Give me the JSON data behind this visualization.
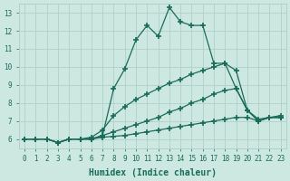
{
  "xlabel": "Humidex (Indice chaleur)",
  "bg_color": "#cce8e0",
  "line_color": "#1a6b5a",
  "grid_color": "#b0d0c8",
  "xlim": [
    -0.5,
    23.5
  ],
  "ylim": [
    5.5,
    13.5
  ],
  "xticks": [
    0,
    1,
    2,
    3,
    4,
    5,
    6,
    7,
    8,
    9,
    10,
    11,
    12,
    13,
    14,
    15,
    16,
    17,
    18,
    19,
    20,
    21,
    22,
    23
  ],
  "yticks": [
    6,
    7,
    8,
    9,
    10,
    11,
    12,
    13
  ],
  "line1_x": [
    0,
    1,
    2,
    3,
    4,
    5,
    6,
    7,
    8,
    9,
    10,
    11,
    12,
    13,
    14,
    15,
    16,
    17,
    18,
    19,
    20,
    21,
    22,
    23
  ],
  "line1_y": [
    6.0,
    6.0,
    6.0,
    5.8,
    6.0,
    6.0,
    6.0,
    6.2,
    8.8,
    9.9,
    11.5,
    12.3,
    11.7,
    13.3,
    12.5,
    12.3,
    12.3,
    10.2,
    10.2,
    9.8,
    7.6,
    7.0,
    7.2,
    7.3
  ],
  "line2_x": [
    0,
    1,
    2,
    3,
    4,
    5,
    6,
    7,
    8,
    9,
    10,
    11,
    12,
    13,
    14,
    15,
    16,
    17,
    18,
    19,
    20,
    21,
    22,
    23
  ],
  "line2_y": [
    6.0,
    6.0,
    6.0,
    5.8,
    6.0,
    6.0,
    6.1,
    6.5,
    7.3,
    7.8,
    8.2,
    8.5,
    8.8,
    9.1,
    9.3,
    9.6,
    9.8,
    10.0,
    10.2,
    8.8,
    7.6,
    7.0,
    7.2,
    7.2
  ],
  "line3_x": [
    0,
    1,
    2,
    3,
    4,
    5,
    6,
    7,
    8,
    9,
    10,
    11,
    12,
    13,
    14,
    15,
    16,
    17,
    18,
    19,
    20,
    21,
    22,
    23
  ],
  "line3_y": [
    6.0,
    6.0,
    6.0,
    5.8,
    6.0,
    6.0,
    6.0,
    6.2,
    6.4,
    6.6,
    6.8,
    7.0,
    7.2,
    7.5,
    7.7,
    8.0,
    8.2,
    8.5,
    8.7,
    8.8,
    7.6,
    7.1,
    7.2,
    7.2
  ],
  "line4_x": [
    0,
    1,
    2,
    3,
    4,
    5,
    6,
    7,
    8,
    9,
    10,
    11,
    12,
    13,
    14,
    15,
    16,
    17,
    18,
    19,
    20,
    21,
    22,
    23
  ],
  "line4_y": [
    6.0,
    6.0,
    6.0,
    5.8,
    6.0,
    6.0,
    6.0,
    6.1,
    6.15,
    6.2,
    6.3,
    6.4,
    6.5,
    6.6,
    6.7,
    6.8,
    6.9,
    7.0,
    7.1,
    7.2,
    7.2,
    7.0,
    7.2,
    7.2
  ]
}
